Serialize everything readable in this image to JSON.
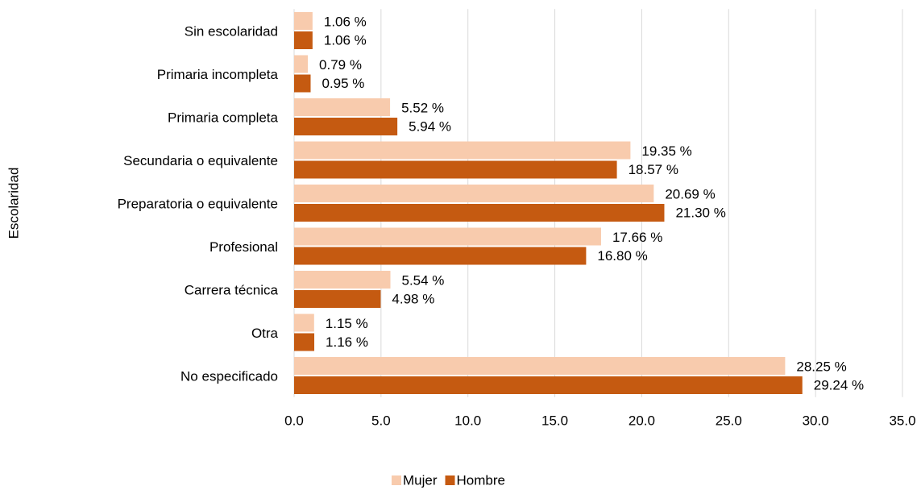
{
  "chart_data": {
    "type": "bar",
    "orientation": "horizontal",
    "y_label": "Escolaridad",
    "categories": [
      "Sin escolaridad",
      "Primaria incompleta",
      "Primaria completa",
      "Secundaria o equivalente",
      "Preparatoria o equivalente",
      "Profesional",
      "Carrera técnica",
      "Otra",
      "No especificado"
    ],
    "series": [
      {
        "name": "Mujer",
        "color": "#f8cbad",
        "values": [
          1.06,
          0.79,
          5.52,
          19.35,
          20.69,
          17.66,
          5.54,
          1.15,
          28.25
        ],
        "value_labels": [
          "1.06 %",
          "0.79 %",
          "5.52 %",
          "19.35 %",
          "20.69 %",
          "17.66 %",
          "5.54 %",
          "1.15 %",
          "28.25 %"
        ]
      },
      {
        "name": "Hombre",
        "color": "#c55a11",
        "values": [
          1.06,
          0.95,
          5.94,
          18.57,
          21.3,
          16.8,
          4.98,
          1.16,
          29.24
        ],
        "value_labels": [
          "1.06 %",
          "0.95 %",
          "5.94 %",
          "18.57 %",
          "21.30 %",
          "16.80 %",
          "4.98 %",
          "1.16 %",
          "29.24 %"
        ]
      }
    ],
    "xlim": [
      0,
      35
    ],
    "xticks": [
      {
        "value": 0,
        "label": "0.0"
      },
      {
        "value": 5,
        "label": "5.0"
      },
      {
        "value": 10,
        "label": "10.0"
      },
      {
        "value": 15,
        "label": "15.0"
      },
      {
        "value": 20,
        "label": "20.0"
      },
      {
        "value": 25,
        "label": "25.0"
      },
      {
        "value": 30,
        "label": "30.0"
      },
      {
        "value": 35,
        "label": "35.0"
      }
    ],
    "grid": true,
    "legend": "bottom"
  }
}
